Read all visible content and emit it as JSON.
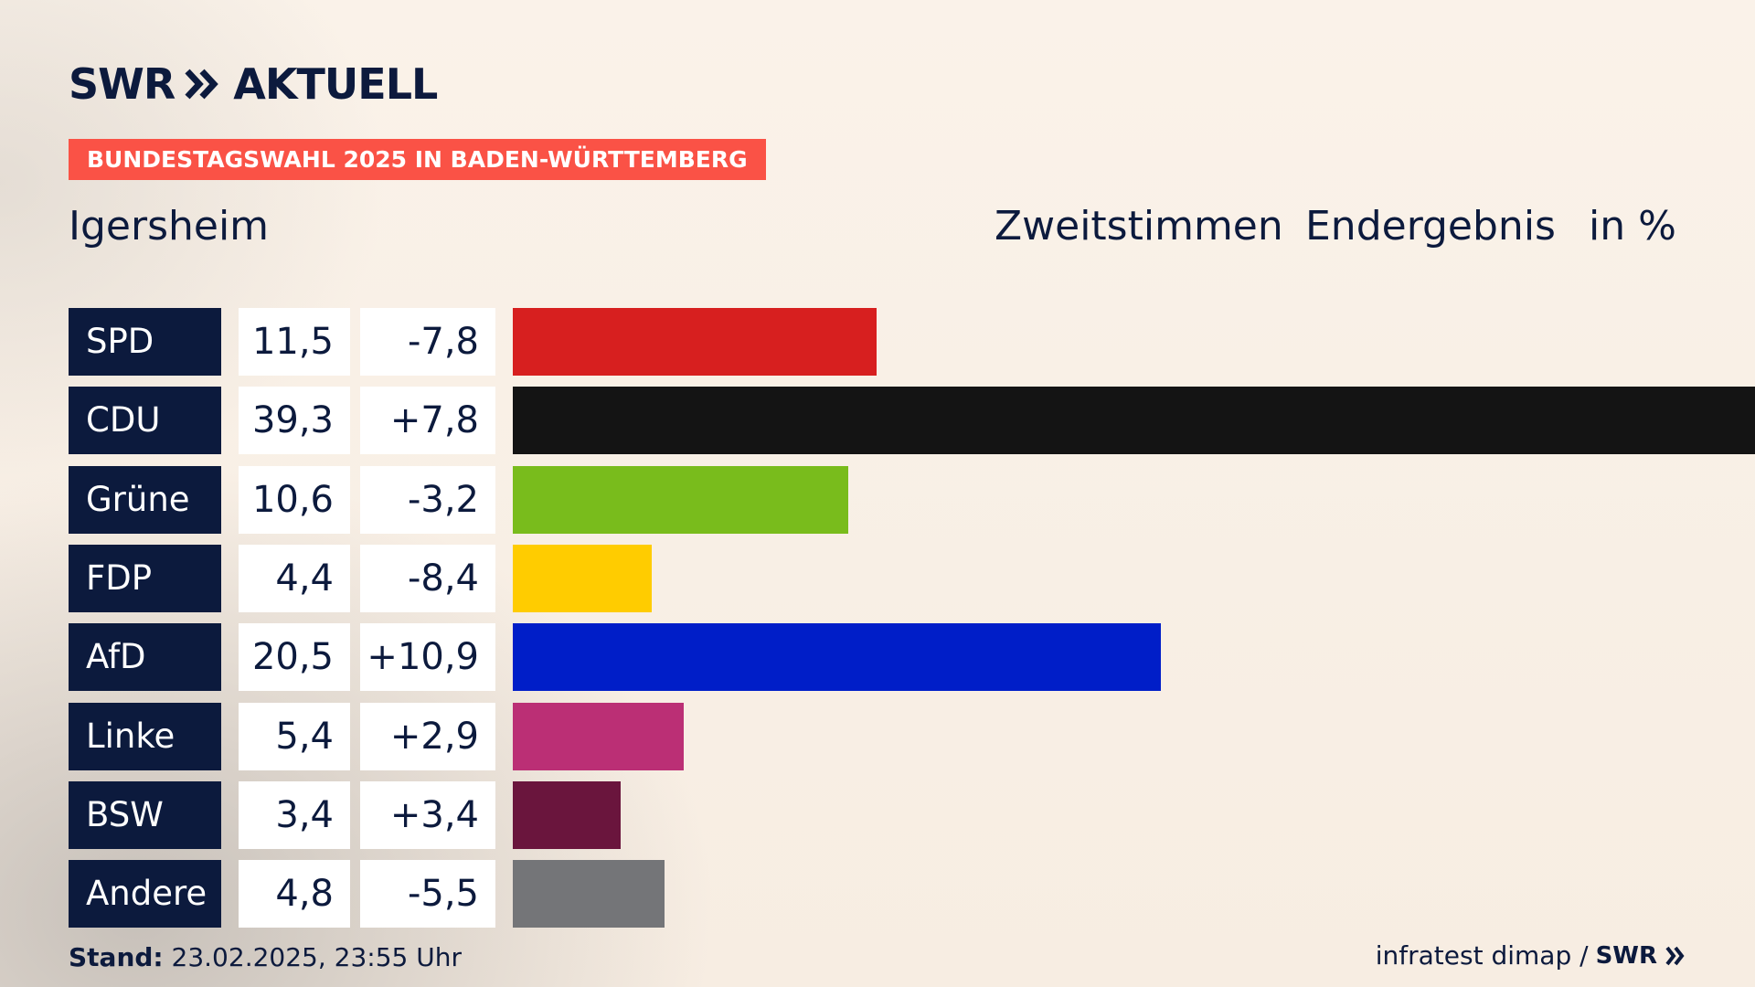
{
  "brand": {
    "swr": "SWR",
    "aktuell": "AKTUELL",
    "footer_logo": "SWR"
  },
  "tag": "BUNDESTAGSWAHL 2025 IN BADEN-WÜRTTEMBERG",
  "location": "Igersheim",
  "headers": {
    "vote_type": "Zweitstimmen",
    "status": "Endergebnis",
    "unit": "in %"
  },
  "footer": {
    "stand_label": "Stand:",
    "stand_value": "23.02.2025, 23:55 Uhr",
    "source": "infratest dimap /"
  },
  "chart_data": {
    "type": "bar",
    "orientation": "horizontal",
    "categories": [
      "SPD",
      "CDU",
      "Grüne",
      "FDP",
      "AfD",
      "Linke",
      "BSW",
      "Andere"
    ],
    "values": [
      11.5,
      39.3,
      10.6,
      4.4,
      20.5,
      5.4,
      3.4,
      4.8
    ],
    "value_labels": [
      "11,5",
      "39,3",
      "10,6",
      "4,4",
      "20,5",
      "5,4",
      "3,4",
      "4,8"
    ],
    "diff_labels": [
      "-7,8",
      "+7,8",
      "-3,2",
      "-8,4",
      "+10,9",
      "+2,9",
      "+3,4",
      "-5,5"
    ],
    "colors": [
      "#d71f1f",
      "#141414",
      "#79bc1c",
      "#ffcc00",
      "#001ec8",
      "#bb2f75",
      "#6a153d",
      "#747578"
    ],
    "xlim": [
      0,
      39.3
    ],
    "grid": false
  }
}
